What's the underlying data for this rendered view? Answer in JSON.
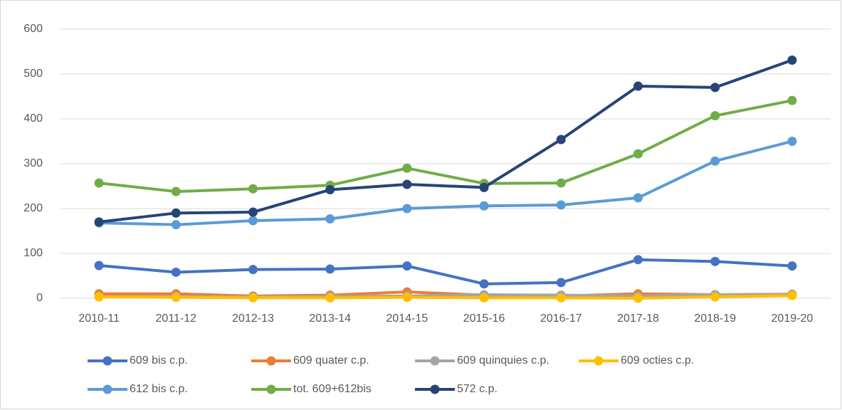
{
  "chart_data": {
    "type": "line",
    "categories": [
      "2010-11",
      "2011-12",
      "2012-13",
      "2013-14",
      "2014-15",
      "2015-16",
      "2016-17",
      "2017-18",
      "2018-19",
      "2019-20"
    ],
    "series": [
      {
        "name": "609 bis c.p.",
        "color": "#4472c4",
        "values": [
          73,
          58,
          64,
          65,
          72,
          32,
          35,
          86,
          82,
          72
        ]
      },
      {
        "name": "609 quater c.p.",
        "color": "#ed7d31",
        "values": [
          10,
          10,
          5,
          7,
          14,
          7,
          5,
          10,
          8,
          9
        ]
      },
      {
        "name": "609 quinquies c.p.",
        "color": "#a5a5a5",
        "values": [
          4,
          4,
          3,
          4,
          5,
          8,
          7,
          5,
          8,
          8
        ]
      },
      {
        "name": "609 octies c.p.",
        "color": "#ffc000",
        "values": [
          3,
          2,
          1,
          1,
          2,
          1,
          1,
          0,
          3,
          6
        ]
      },
      {
        "name": "612 bis c.p.",
        "color": "#5b9bd5",
        "values": [
          168,
          164,
          173,
          177,
          200,
          206,
          208,
          224,
          306,
          350
        ]
      },
      {
        "name": "tot. 609+612bis",
        "color": "#70ad47",
        "values": [
          257,
          238,
          244,
          252,
          290,
          256,
          257,
          322,
          407,
          441
        ]
      },
      {
        "name": "572 c.p.",
        "color": "#264478",
        "values": [
          170,
          190,
          192,
          242,
          254,
          247,
          354,
          473,
          470,
          531
        ]
      }
    ],
    "ylim": [
      0,
      600
    ],
    "yticks": [
      0,
      100,
      200,
      300,
      400,
      500,
      600
    ],
    "grid": true
  }
}
